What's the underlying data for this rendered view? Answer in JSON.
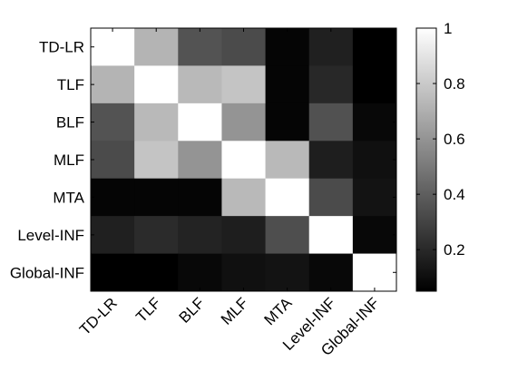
{
  "chart_data": {
    "type": "heatmap",
    "title": "",
    "xlabel": "",
    "ylabel": "",
    "rows": [
      "TD-LR",
      "TLF",
      "BLF",
      "MLF",
      "MTA",
      "Level-INF",
      "Global-INF"
    ],
    "columns": [
      "TD-LR",
      "TLF",
      "BLF",
      "MLF",
      "MTA",
      "Level-INF",
      "Global-INF"
    ],
    "values": [
      [
        1.0,
        0.72,
        0.36,
        0.33,
        0.07,
        0.17,
        0.04
      ],
      [
        0.72,
        1.0,
        0.74,
        0.78,
        0.07,
        0.2,
        0.04
      ],
      [
        0.36,
        0.74,
        1.0,
        0.6,
        0.07,
        0.35,
        0.08
      ],
      [
        0.33,
        0.78,
        0.6,
        1.0,
        0.74,
        0.16,
        0.11
      ],
      [
        0.07,
        0.07,
        0.07,
        0.74,
        1.0,
        0.33,
        0.12
      ],
      [
        0.17,
        0.21,
        0.18,
        0.16,
        0.34,
        1.0,
        0.08
      ],
      [
        0.04,
        0.04,
        0.08,
        0.11,
        0.12,
        0.08,
        1.0
      ]
    ],
    "colormap": "gray",
    "color_min": 0.05,
    "color_max": 1.0,
    "colorbar": {
      "ticks": [
        0.2,
        0.4,
        0.6,
        0.8,
        1.0
      ],
      "tick_labels": [
        "0.2",
        "0.4",
        "0.6",
        "0.8",
        "1"
      ]
    },
    "x_tick_rotation": "45deg",
    "grid": false
  }
}
